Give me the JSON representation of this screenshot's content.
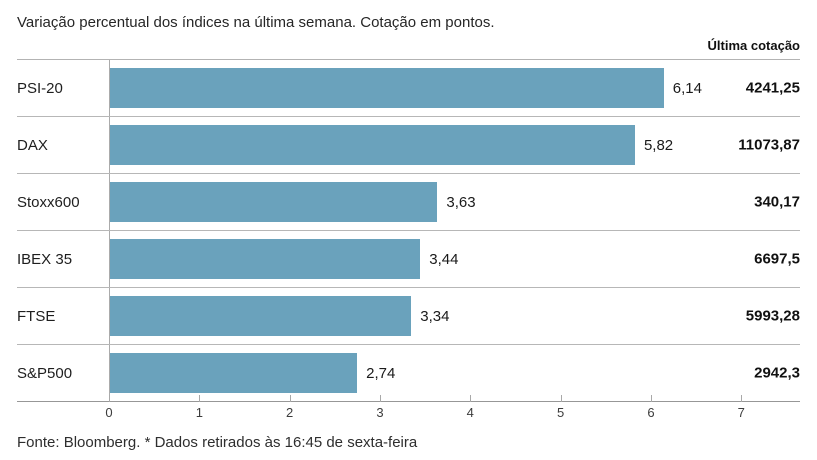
{
  "title": "Variação percentual dos índices na última semana. Cotação em pontos.",
  "header": {
    "last_quote_label": "Última cotação"
  },
  "footer": {
    "text": "Fonte: Bloomberg.  * Dados retirados às 16:45 de sexta-feira"
  },
  "colors": {
    "bar": "#6aa2bc",
    "grid": "#b7b7b7",
    "axis_line": "#979797",
    "text": "#1e1e1e"
  },
  "chart_data": {
    "type": "bar",
    "orientation": "horizontal",
    "title": "Variação percentual dos índices na última semana. Cotação em pontos.",
    "xlabel": "",
    "ylabel": "",
    "categories": [
      "PSI-20",
      "DAX",
      "Stoxx600",
      "IBEX 35",
      "FTSE",
      "S&P500"
    ],
    "values": [
      6.14,
      5.82,
      3.63,
      3.44,
      3.34,
      2.74
    ],
    "value_labels": [
      "6,14",
      "5,82",
      "3,63",
      "3,44",
      "3,34",
      "2,74"
    ],
    "quotes": [
      "4241,25",
      "11073,87",
      "340,17",
      "6697,5",
      "5993,28",
      "2942,3"
    ],
    "quotes_header": "Última cotação",
    "xticks": [
      0,
      1,
      2,
      3,
      4,
      5,
      6,
      7
    ],
    "xlim": [
      0,
      7.65
    ],
    "grid": false,
    "legend": null
  }
}
